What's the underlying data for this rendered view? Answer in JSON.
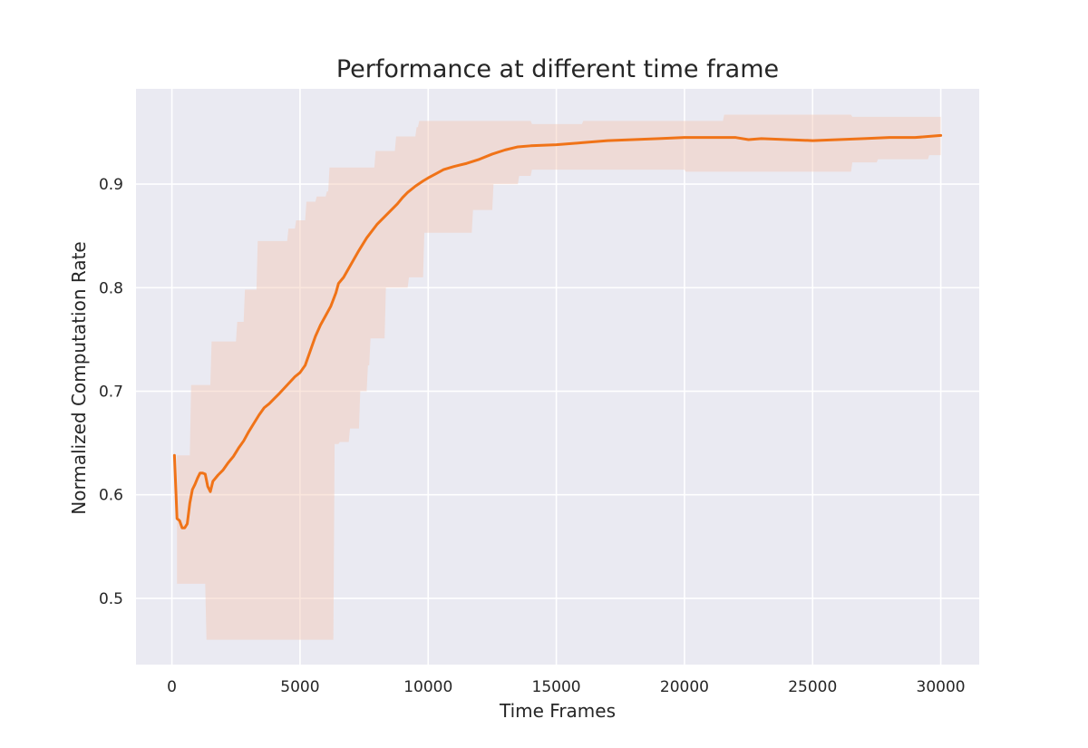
{
  "chart_data": {
    "type": "line",
    "title": "Performance at different time frame",
    "xlabel": "Time Frames",
    "ylabel": "Normalized Computation Rate",
    "xlim": [
      -1400,
      31500
    ],
    "ylim": [
      0.436,
      0.992
    ],
    "xticks": [
      0,
      5000,
      10000,
      15000,
      20000,
      25000,
      30000
    ],
    "yticks": [
      0.5,
      0.6,
      0.7,
      0.8,
      0.9
    ],
    "grid": true,
    "legend": "none",
    "colors": {
      "background": "#EAEAF2",
      "grid": "#FFFFFF",
      "line": "#F07318",
      "band": "#F3C8B4"
    },
    "series": [
      {
        "values_kind": "mean",
        "x": [
          100,
          200,
          300,
          400,
          500,
          600,
          700,
          800,
          900,
          1000,
          1100,
          1200,
          1300,
          1400,
          1500,
          1600,
          1800,
          2000,
          2200,
          2400,
          2600,
          2800,
          3000,
          3200,
          3400,
          3600,
          3800,
          4000,
          4200,
          4500,
          4800,
          5000,
          5200,
          5400,
          5600,
          5800,
          6000,
          6200,
          6400,
          6500,
          6700,
          7000,
          7300,
          7600,
          8000,
          8400,
          8800,
          9000,
          9200,
          9500,
          9800,
          10000,
          10300,
          10600,
          11000,
          11500,
          12000,
          12500,
          13000,
          13500,
          14000,
          15000,
          16000,
          17000,
          18000,
          19000,
          20000,
          21000,
          22000,
          22500,
          23000,
          24000,
          25000,
          26000,
          27000,
          28000,
          29000,
          30000
        ],
        "y": [
          0.638,
          0.577,
          0.575,
          0.568,
          0.568,
          0.572,
          0.592,
          0.605,
          0.61,
          0.616,
          0.621,
          0.621,
          0.62,
          0.608,
          0.603,
          0.613,
          0.619,
          0.624,
          0.631,
          0.637,
          0.645,
          0.652,
          0.661,
          0.669,
          0.677,
          0.684,
          0.688,
          0.693,
          0.698,
          0.706,
          0.714,
          0.718,
          0.725,
          0.739,
          0.753,
          0.764,
          0.773,
          0.782,
          0.795,
          0.804,
          0.81,
          0.823,
          0.836,
          0.848,
          0.861,
          0.871,
          0.881,
          0.887,
          0.892,
          0.898,
          0.903,
          0.906,
          0.91,
          0.914,
          0.917,
          0.92,
          0.924,
          0.929,
          0.933,
          0.936,
          0.937,
          0.938,
          0.94,
          0.942,
          0.943,
          0.944,
          0.945,
          0.945,
          0.945,
          0.943,
          0.944,
          0.943,
          0.942,
          0.943,
          0.944,
          0.945,
          0.945,
          0.947
        ]
      },
      {
        "values_kind": "upper",
        "x": [
          200,
          700,
          750,
          1500,
          1550,
          2500,
          2550,
          2800,
          2850,
          3300,
          3350,
          4500,
          4550,
          4800,
          4850,
          5200,
          5250,
          5600,
          5650,
          6000,
          6050,
          6100,
          6150,
          7900,
          7950,
          8700,
          8750,
          9500,
          9550,
          9600,
          9650,
          14000,
          14050,
          16000,
          16050,
          21500,
          21550,
          26500,
          26550,
          30000
        ],
        "y": [
          0.638,
          0.638,
          0.706,
          0.706,
          0.748,
          0.748,
          0.767,
          0.767,
          0.798,
          0.798,
          0.845,
          0.845,
          0.857,
          0.857,
          0.865,
          0.865,
          0.883,
          0.883,
          0.888,
          0.888,
          0.893,
          0.893,
          0.916,
          0.916,
          0.932,
          0.932,
          0.946,
          0.946,
          0.955,
          0.955,
          0.961,
          0.961,
          0.958,
          0.958,
          0.961,
          0.961,
          0.967,
          0.967,
          0.965,
          0.965
        ]
      },
      {
        "values_kind": "lower",
        "x": [
          200,
          1300,
          1350,
          6300,
          6350,
          6500,
          6550,
          6900,
          6950,
          7300,
          7350,
          7600,
          7650,
          7700,
          7750,
          8300,
          8350,
          9200,
          9250,
          9800,
          9850,
          11700,
          11750,
          12500,
          12550,
          13500,
          13550,
          14000,
          14050,
          20000,
          20050,
          26500,
          26550,
          27500,
          27550,
          29500,
          29550,
          30000
        ],
        "y": [
          0.514,
          0.514,
          0.46,
          0.46,
          0.649,
          0.649,
          0.651,
          0.651,
          0.664,
          0.664,
          0.7,
          0.7,
          0.725,
          0.725,
          0.751,
          0.751,
          0.8,
          0.8,
          0.81,
          0.81,
          0.853,
          0.853,
          0.875,
          0.875,
          0.9,
          0.9,
          0.908,
          0.908,
          0.914,
          0.914,
          0.912,
          0.912,
          0.921,
          0.921,
          0.924,
          0.924,
          0.928,
          0.928
        ]
      }
    ]
  }
}
